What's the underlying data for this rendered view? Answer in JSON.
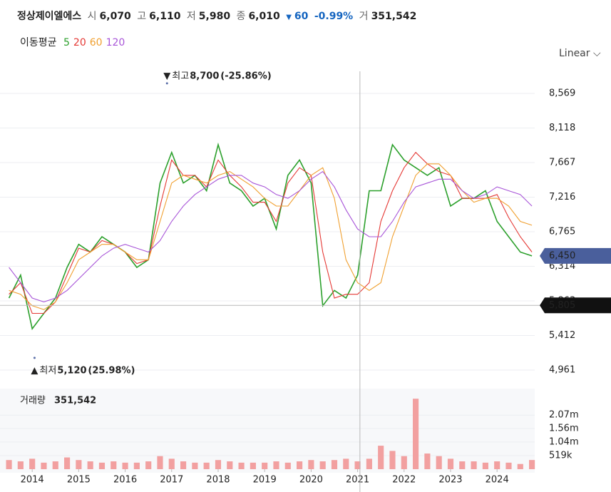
{
  "header": {
    "name": "정상제이엘에스",
    "open_label": "시",
    "open": "6,070",
    "high_label": "고",
    "high": "6,110",
    "low_label": "저",
    "low": "5,980",
    "close_label": "종",
    "close": "6,010",
    "change": "60",
    "change_percent": "-0.99%",
    "volume_label": "거",
    "volume": "351,542"
  },
  "legend_title": "이동평균",
  "scale": "Linear",
  "chart_data": [
    {
      "type": "line",
      "x": [
        2013.5,
        2013.75,
        2014,
        2014.25,
        2014.5,
        2014.75,
        2015,
        2015.25,
        2015.5,
        2015.75,
        2016,
        2016.25,
        2016.5,
        2016.75,
        2017,
        2017.25,
        2017.5,
        2017.75,
        2018,
        2018.25,
        2018.5,
        2018.75,
        2019,
        2019.25,
        2019.5,
        2019.75,
        2020,
        2020.25,
        2020.5,
        2020.75,
        2021,
        2021.25,
        2021.5,
        2021.75,
        2022,
        2022.25,
        2022.5,
        2022.75,
        2023,
        2023.25,
        2023.5,
        2023.75,
        2024,
        2024.25,
        2024.5,
        2024.75
      ],
      "series": [
        {
          "name": "5",
          "color": "#2ca02c",
          "values": [
            5900,
            6200,
            5500,
            5700,
            5900,
            6300,
            6600,
            6500,
            6700,
            6600,
            6500,
            6300,
            6400,
            7400,
            7800,
            7400,
            7500,
            7300,
            7900,
            7400,
            7300,
            7100,
            7200,
            6800,
            7500,
            7700,
            7400,
            5800,
            6000,
            5900,
            6200,
            7300,
            7300,
            7900,
            7700,
            7600,
            7500,
            7600,
            7100,
            7200,
            7200,
            7300,
            6900,
            6700,
            6500,
            6450
          ]
        },
        {
          "name": "20",
          "color": "#e53935",
          "values": [
            5950,
            6100,
            5700,
            5700,
            5850,
            6200,
            6550,
            6500,
            6650,
            6600,
            6500,
            6350,
            6400,
            7100,
            7700,
            7500,
            7500,
            7350,
            7700,
            7500,
            7350,
            7150,
            7150,
            6900,
            7400,
            7600,
            7500,
            6500,
            5900,
            5950,
            5950,
            6100,
            6900,
            7300,
            7600,
            7800,
            7650,
            7550,
            7500,
            7200,
            7200,
            7200,
            7250,
            6950,
            6700,
            6500
          ]
        },
        {
          "name": "60",
          "color": "#f0a030",
          "values": [
            6000,
            5950,
            5800,
            5750,
            5850,
            6100,
            6400,
            6500,
            6600,
            6600,
            6500,
            6400,
            6400,
            6900,
            7400,
            7500,
            7450,
            7400,
            7500,
            7550,
            7450,
            7350,
            7200,
            7100,
            7100,
            7300,
            7500,
            7600,
            7200,
            6400,
            6100,
            6000,
            6100,
            6700,
            7100,
            7500,
            7650,
            7650,
            7500,
            7300,
            7150,
            7200,
            7200,
            7100,
            6900,
            6850
          ]
        },
        {
          "name": "120",
          "color": "#a855d8",
          "values": [
            6300,
            6100,
            5900,
            5850,
            5900,
            6000,
            6150,
            6300,
            6450,
            6550,
            6600,
            6550,
            6500,
            6650,
            6900,
            7100,
            7250,
            7350,
            7450,
            7500,
            7500,
            7400,
            7350,
            7250,
            7200,
            7300,
            7450,
            7550,
            7350,
            7050,
            6800,
            6700,
            6700,
            6900,
            7150,
            7350,
            7400,
            7450,
            7450,
            7300,
            7200,
            7250,
            7350,
            7300,
            7250,
            7100
          ]
        }
      ],
      "xlim": [
        2013.43,
        2024.81
      ],
      "xticks": [
        2014,
        2015,
        2016,
        2017,
        2018,
        2019,
        2020,
        2021,
        2022,
        2023,
        2024
      ],
      "ylim": [
        4766,
        8857
      ],
      "yticks": [
        {
          "value": 4961,
          "label": "4,961"
        },
        {
          "value": 5412,
          "label": "5,412"
        },
        {
          "value": 5863,
          "label": "5,863"
        },
        {
          "value": 6314,
          "label": "6,314"
        },
        {
          "value": 6765,
          "label": "6,765"
        },
        {
          "value": 7216,
          "label": "7,216"
        },
        {
          "value": 7667,
          "label": "7,667"
        },
        {
          "value": 8118,
          "label": "8,118"
        },
        {
          "value": 8569,
          "label": "8,569"
        }
      ],
      "grid": true,
      "annotations": [
        {
          "text": "최고",
          "x": 2016.9,
          "value": 8700,
          "value_label": "8,700",
          "change": "(-25.86%)",
          "marker": "down"
        },
        {
          "text": "최저",
          "x": 2014.05,
          "value": 5120,
          "value_label": "5,120",
          "change": "(25.98%)",
          "marker": "up"
        }
      ],
      "last_price": {
        "value": 6450,
        "label": "6,450",
        "color": "#4a5f9c"
      },
      "crosshair": {
        "x": 2021.05,
        "value": 5805,
        "label": "5,805"
      }
    },
    {
      "type": "bar",
      "title": "거래량",
      "current": "351,542",
      "x": [
        2013.5,
        2013.75,
        2014,
        2014.25,
        2014.5,
        2014.75,
        2015,
        2015.25,
        2015.5,
        2015.75,
        2016,
        2016.25,
        2016.5,
        2016.75,
        2017,
        2017.25,
        2017.5,
        2017.75,
        2018,
        2018.25,
        2018.5,
        2018.75,
        2019,
        2019.25,
        2019.5,
        2019.75,
        2020,
        2020.25,
        2020.5,
        2020.75,
        2021,
        2021.25,
        2021.5,
        2021.75,
        2022,
        2022.25,
        2022.5,
        2022.75,
        2023,
        2023.25,
        2023.5,
        2023.75,
        2024,
        2024.25,
        2024.5,
        2024.75
      ],
      "values": [
        350000,
        300000,
        400000,
        250000,
        300000,
        450000,
        350000,
        300000,
        250000,
        300000,
        250000,
        250000,
        300000,
        500000,
        400000,
        300000,
        250000,
        250000,
        350000,
        300000,
        250000,
        250000,
        250000,
        300000,
        250000,
        300000,
        350000,
        300000,
        350000,
        400000,
        300000,
        400000,
        900000,
        700000,
        500000,
        2700000,
        600000,
        500000,
        400000,
        300000,
        300000,
        250000,
        300000,
        250000,
        200000,
        351542
      ],
      "color": "#f2a0a0",
      "ylim": [
        0,
        3087000
      ],
      "yticks": [
        {
          "value": 519000,
          "label": "519k"
        },
        {
          "value": 1040000,
          "label": "1.04m"
        },
        {
          "value": 1560000,
          "label": "1.56m"
        },
        {
          "value": 2070000,
          "label": "2.07m"
        }
      ]
    }
  ]
}
